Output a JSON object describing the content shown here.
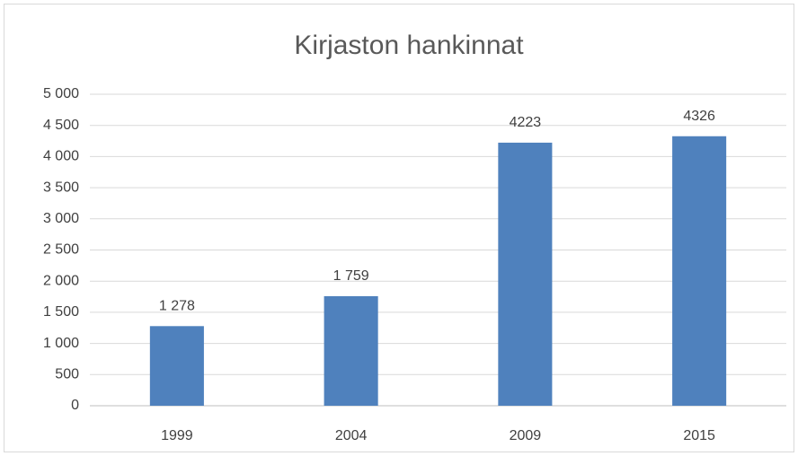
{
  "chart_data": {
    "type": "bar",
    "title": "Kirjaston hankinnat",
    "categories": [
      "1999",
      "2004",
      "2009",
      "2015"
    ],
    "values": [
      1278,
      1759,
      4223,
      4326
    ],
    "value_labels": [
      "1 278",
      "1 759",
      "4223",
      "4326"
    ],
    "color": "#4f81bd",
    "ylim": [
      0,
      5000
    ],
    "yticks": [
      0,
      500,
      {
        "value": 1000,
        "label": "1 000"
      },
      {
        "value": 1500,
        "label": "1 500"
      },
      {
        "value": 2000,
        "label": "2 000"
      },
      {
        "value": 2500,
        "label": "2 500"
      },
      {
        "value": 3000,
        "label": "3 000"
      },
      {
        "value": 3500,
        "label": "3 500"
      },
      {
        "value": 4000,
        "label": "4 000"
      },
      {
        "value": 4500,
        "label": "4 500"
      },
      {
        "value": 5000,
        "label": "5 000"
      }
    ],
    "grid": true
  }
}
